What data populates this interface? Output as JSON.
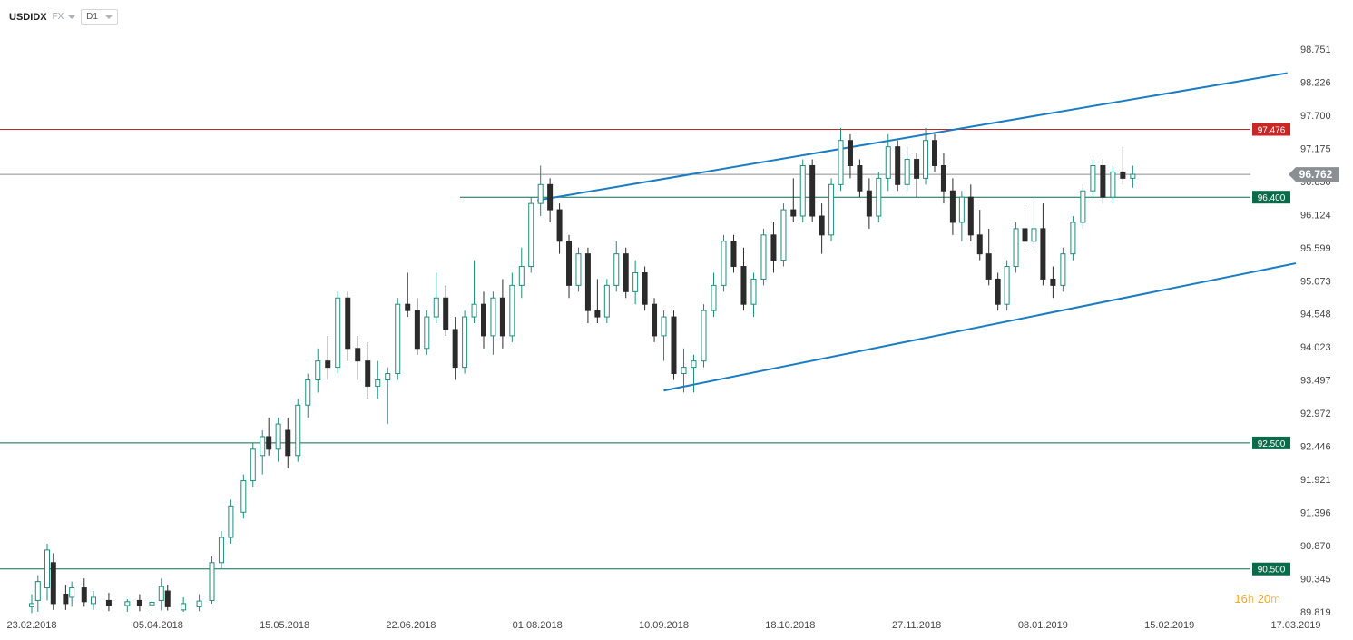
{
  "header": {
    "symbol": "USDIDX",
    "exchange": "FX",
    "timeframe": "D1"
  },
  "countdown": {
    "hours": "16",
    "hours_unit": "h",
    "minutes": "20",
    "minutes_unit": "m"
  },
  "colors": {
    "up": "#1e8e7e",
    "down": "#2b2b2b",
    "resistance": "#c62828",
    "support": "#0a6b4a",
    "trendline": "#1a7cc2",
    "current_price": "#8a8f94"
  },
  "chart_data": {
    "type": "candlestick",
    "y_ticks": [
      "98.751",
      "98.226",
      "97.700",
      "97.175",
      "96.650",
      "96.124",
      "95.599",
      "95.073",
      "94.548",
      "94.023",
      "93.497",
      "92.972",
      "92.446",
      "91.921",
      "91.396",
      "90.870",
      "90.345",
      "89.819"
    ],
    "ylim": [
      89.819,
      98.751
    ],
    "x_ticks": [
      "23.02.2018",
      "05.04.2018",
      "15.05.2018",
      "22.06.2018",
      "01.08.2018",
      "10.09.2018",
      "18.10.2018",
      "27.11.2018",
      "08.01.2019",
      "15.02.2019",
      "17.03.2019"
    ],
    "levels": [
      {
        "value": 97.476,
        "label": "97.476",
        "kind": "resistance"
      },
      {
        "value": 96.4,
        "label": "96.400",
        "kind": "support"
      },
      {
        "value": 92.5,
        "label": "92.500",
        "kind": "support"
      },
      {
        "value": 90.5,
        "label": "90.500",
        "kind": "support"
      }
    ],
    "current_price": {
      "value": 96.762,
      "label": "96.762"
    },
    "trendlines": [
      {
        "from": [
          "01.08.2018",
          96.35
        ],
        "to": [
          "15.03.2019",
          98.37
        ]
      },
      {
        "from": [
          "10.09.2018",
          93.33
        ],
        "to": [
          "17.03.2019",
          95.35
        ]
      }
    ],
    "candles": [
      {
        "date": "23.02.2018",
        "o": 89.9,
        "h": 90.1,
        "l": 89.8,
        "c": 89.95
      },
      {
        "date": "25.02.2018",
        "o": 90.0,
        "h": 90.4,
        "l": 89.82,
        "c": 90.3
      },
      {
        "date": "28.02.2018",
        "o": 90.2,
        "h": 90.9,
        "l": 90.0,
        "c": 90.8
      },
      {
        "date": "02.03.2018",
        "o": 90.6,
        "h": 90.75,
        "l": 89.85,
        "c": 89.95
      },
      {
        "date": "06.03.2018",
        "o": 90.1,
        "h": 90.25,
        "l": 89.85,
        "c": 89.95
      },
      {
        "date": "08.03.2018",
        "o": 90.05,
        "h": 90.3,
        "l": 89.9,
        "c": 90.2
      },
      {
        "date": "12.03.2018",
        "o": 90.2,
        "h": 90.35,
        "l": 89.9,
        "c": 89.98
      },
      {
        "date": "15.03.2018",
        "o": 89.95,
        "h": 90.15,
        "l": 89.85,
        "c": 90.05
      },
      {
        "date": "20.03.2018",
        "o": 90.0,
        "h": 90.12,
        "l": 89.83,
        "c": 89.92
      },
      {
        "date": "26.03.2018",
        "o": 89.92,
        "h": 90.02,
        "l": 89.82,
        "c": 89.98
      },
      {
        "date": "30.03.2018",
        "o": 90.0,
        "h": 90.1,
        "l": 89.83,
        "c": 89.92
      },
      {
        "date": "03.04.2018",
        "o": 89.93,
        "h": 90.0,
        "l": 89.82,
        "c": 89.97
      },
      {
        "date": "06.04.2018",
        "o": 90.0,
        "h": 90.35,
        "l": 89.84,
        "c": 90.22
      },
      {
        "date": "08.04.2018",
        "o": 90.15,
        "h": 90.25,
        "l": 89.84,
        "c": 89.9
      },
      {
        "date": "13.04.2018",
        "o": 89.85,
        "h": 90.05,
        "l": 89.82,
        "c": 89.95
      },
      {
        "date": "18.04.2018",
        "o": 89.9,
        "h": 90.1,
        "l": 89.83,
        "c": 89.99
      },
      {
        "date": "22.04.2018",
        "o": 90.0,
        "h": 90.7,
        "l": 89.95,
        "c": 90.6
      },
      {
        "date": "25.04.2018",
        "o": 90.6,
        "h": 91.1,
        "l": 90.5,
        "c": 91.0
      },
      {
        "date": "28.04.2018",
        "o": 91.0,
        "h": 91.6,
        "l": 90.9,
        "c": 91.5
      },
      {
        "date": "02.05.2018",
        "o": 91.4,
        "h": 92.0,
        "l": 91.3,
        "c": 91.9
      },
      {
        "date": "05.05.2018",
        "o": 91.9,
        "h": 92.5,
        "l": 91.8,
        "c": 92.4
      },
      {
        "date": "08.05.2018",
        "o": 92.3,
        "h": 92.7,
        "l": 92.0,
        "c": 92.6
      },
      {
        "date": "10.05.2018",
        "o": 92.6,
        "h": 92.9,
        "l": 92.3,
        "c": 92.4
      },
      {
        "date": "13.05.2018",
        "o": 92.4,
        "h": 92.9,
        "l": 92.2,
        "c": 92.8
      },
      {
        "date": "16.05.2018",
        "o": 92.7,
        "h": 92.9,
        "l": 92.1,
        "c": 92.3
      },
      {
        "date": "19.05.2018",
        "o": 92.3,
        "h": 93.2,
        "l": 92.2,
        "c": 93.1
      },
      {
        "date": "22.05.2018",
        "o": 93.1,
        "h": 93.6,
        "l": 92.9,
        "c": 93.5
      },
      {
        "date": "25.05.2018",
        "o": 93.5,
        "h": 94.0,
        "l": 93.3,
        "c": 93.8
      },
      {
        "date": "28.05.2018",
        "o": 93.8,
        "h": 94.2,
        "l": 93.5,
        "c": 93.7
      },
      {
        "date": "31.05.2018",
        "o": 93.7,
        "h": 94.9,
        "l": 93.6,
        "c": 94.8
      },
      {
        "date": "03.06.2018",
        "o": 94.8,
        "h": 94.9,
        "l": 93.8,
        "c": 94.0
      },
      {
        "date": "06.06.2018",
        "o": 94.0,
        "h": 94.2,
        "l": 93.5,
        "c": 93.8
      },
      {
        "date": "09.06.2018",
        "o": 93.8,
        "h": 94.1,
        "l": 93.2,
        "c": 93.4
      },
      {
        "date": "12.06.2018",
        "o": 93.4,
        "h": 93.8,
        "l": 93.2,
        "c": 93.5
      },
      {
        "date": "15.06.2018",
        "o": 93.5,
        "h": 93.7,
        "l": 92.8,
        "c": 93.6
      },
      {
        "date": "18.06.2018",
        "o": 93.6,
        "h": 94.8,
        "l": 93.5,
        "c": 94.7
      },
      {
        "date": "21.06.2018",
        "o": 94.7,
        "h": 95.2,
        "l": 94.5,
        "c": 94.6
      },
      {
        "date": "24.06.2018",
        "o": 94.6,
        "h": 94.8,
        "l": 93.9,
        "c": 94.0
      },
      {
        "date": "27.06.2018",
        "o": 94.0,
        "h": 94.6,
        "l": 93.9,
        "c": 94.5
      },
      {
        "date": "30.06.2018",
        "o": 94.5,
        "h": 95.2,
        "l": 94.4,
        "c": 94.8
      },
      {
        "date": "03.07.2018",
        "o": 94.8,
        "h": 95.0,
        "l": 94.2,
        "c": 94.3
      },
      {
        "date": "06.07.2018",
        "o": 94.3,
        "h": 94.5,
        "l": 93.5,
        "c": 93.7
      },
      {
        "date": "09.07.2018",
        "o": 93.7,
        "h": 94.6,
        "l": 93.6,
        "c": 94.5
      },
      {
        "date": "12.07.2018",
        "o": 94.5,
        "h": 95.4,
        "l": 94.4,
        "c": 94.7
      },
      {
        "date": "15.07.2018",
        "o": 94.7,
        "h": 94.9,
        "l": 94.0,
        "c": 94.2
      },
      {
        "date": "18.07.2018",
        "o": 94.2,
        "h": 94.9,
        "l": 93.9,
        "c": 94.8
      },
      {
        "date": "21.07.2018",
        "o": 94.8,
        "h": 95.1,
        "l": 94.0,
        "c": 94.2
      },
      {
        "date": "24.07.2018",
        "o": 94.2,
        "h": 95.2,
        "l": 94.1,
        "c": 95.0
      },
      {
        "date": "27.07.2018",
        "o": 95.0,
        "h": 95.6,
        "l": 94.8,
        "c": 95.3
      },
      {
        "date": "30.07.2018",
        "o": 95.3,
        "h": 96.4,
        "l": 95.2,
        "c": 96.3
      },
      {
        "date": "02.08.2018",
        "o": 96.3,
        "h": 96.9,
        "l": 96.1,
        "c": 96.6
      },
      {
        "date": "05.08.2018",
        "o": 96.6,
        "h": 96.7,
        "l": 96.0,
        "c": 96.2
      },
      {
        "date": "08.08.2018",
        "o": 96.2,
        "h": 96.3,
        "l": 95.5,
        "c": 95.7
      },
      {
        "date": "11.08.2018",
        "o": 95.7,
        "h": 95.8,
        "l": 94.8,
        "c": 95.0
      },
      {
        "date": "14.08.2018",
        "o": 95.0,
        "h": 95.6,
        "l": 94.9,
        "c": 95.5
      },
      {
        "date": "17.08.2018",
        "o": 95.5,
        "h": 95.6,
        "l": 94.4,
        "c": 94.6
      },
      {
        "date": "20.08.2018",
        "o": 94.6,
        "h": 95.1,
        "l": 94.4,
        "c": 94.5
      },
      {
        "date": "23.08.2018",
        "o": 94.5,
        "h": 95.1,
        "l": 94.4,
        "c": 95.0
      },
      {
        "date": "26.08.2018",
        "o": 95.0,
        "h": 95.7,
        "l": 94.9,
        "c": 95.5
      },
      {
        "date": "29.08.2018",
        "o": 95.5,
        "h": 95.6,
        "l": 94.8,
        "c": 94.9
      },
      {
        "date": "01.09.2018",
        "o": 94.9,
        "h": 95.4,
        "l": 94.7,
        "c": 95.2
      },
      {
        "date": "04.09.2018",
        "o": 95.2,
        "h": 95.3,
        "l": 94.6,
        "c": 94.7
      },
      {
        "date": "07.09.2018",
        "o": 94.7,
        "h": 94.8,
        "l": 94.1,
        "c": 94.2
      },
      {
        "date": "10.09.2018",
        "o": 94.2,
        "h": 94.6,
        "l": 93.8,
        "c": 94.5
      },
      {
        "date": "13.09.2018",
        "o": 94.5,
        "h": 94.6,
        "l": 93.5,
        "c": 93.6
      },
      {
        "date": "16.09.2018",
        "o": 93.6,
        "h": 94.0,
        "l": 93.3,
        "c": 93.7
      },
      {
        "date": "19.09.2018",
        "o": 93.7,
        "h": 93.9,
        "l": 93.3,
        "c": 93.8
      },
      {
        "date": "22.09.2018",
        "o": 93.8,
        "h": 94.7,
        "l": 93.7,
        "c": 94.6
      },
      {
        "date": "25.09.2018",
        "o": 94.6,
        "h": 95.2,
        "l": 94.5,
        "c": 95.0
      },
      {
        "date": "28.09.2018",
        "o": 95.0,
        "h": 95.8,
        "l": 94.9,
        "c": 95.7
      },
      {
        "date": "01.10.2018",
        "o": 95.7,
        "h": 95.8,
        "l": 95.2,
        "c": 95.3
      },
      {
        "date": "04.10.2018",
        "o": 95.3,
        "h": 95.6,
        "l": 94.6,
        "c": 94.7
      },
      {
        "date": "07.10.2018",
        "o": 94.7,
        "h": 95.2,
        "l": 94.5,
        "c": 95.1
      },
      {
        "date": "10.10.2018",
        "o": 95.1,
        "h": 95.9,
        "l": 95.0,
        "c": 95.8
      },
      {
        "date": "13.10.2018",
        "o": 95.8,
        "h": 96.0,
        "l": 95.2,
        "c": 95.4
      },
      {
        "date": "16.10.2018",
        "o": 95.4,
        "h": 96.3,
        "l": 95.3,
        "c": 96.2
      },
      {
        "date": "19.10.2018",
        "o": 96.2,
        "h": 96.7,
        "l": 96.0,
        "c": 96.1
      },
      {
        "date": "22.10.2018",
        "o": 96.1,
        "h": 97.0,
        "l": 96.0,
        "c": 96.9
      },
      {
        "date": "25.10.2018",
        "o": 96.9,
        "h": 97.0,
        "l": 96.0,
        "c": 96.1
      },
      {
        "date": "28.10.2018",
        "o": 96.1,
        "h": 96.3,
        "l": 95.5,
        "c": 95.8
      },
      {
        "date": "31.10.2018",
        "o": 95.8,
        "h": 96.7,
        "l": 95.7,
        "c": 96.6
      },
      {
        "date": "03.11.2018",
        "o": 96.6,
        "h": 97.5,
        "l": 96.5,
        "c": 97.3
      },
      {
        "date": "06.11.2018",
        "o": 97.3,
        "h": 97.4,
        "l": 96.7,
        "c": 96.9
      },
      {
        "date": "09.11.2018",
        "o": 96.9,
        "h": 97.0,
        "l": 96.4,
        "c": 96.5
      },
      {
        "date": "12.11.2018",
        "o": 96.5,
        "h": 96.7,
        "l": 95.9,
        "c": 96.1
      },
      {
        "date": "15.11.2018",
        "o": 96.1,
        "h": 96.8,
        "l": 96.0,
        "c": 96.7
      },
      {
        "date": "18.11.2018",
        "o": 96.7,
        "h": 97.4,
        "l": 96.5,
        "c": 97.2
      },
      {
        "date": "21.11.2018",
        "o": 97.2,
        "h": 97.3,
        "l": 96.5,
        "c": 96.6
      },
      {
        "date": "24.11.2018",
        "o": 96.6,
        "h": 97.2,
        "l": 96.5,
        "c": 97.0
      },
      {
        "date": "27.11.2018",
        "o": 97.0,
        "h": 97.1,
        "l": 96.4,
        "c": 96.7
      },
      {
        "date": "30.11.2018",
        "o": 96.7,
        "h": 97.5,
        "l": 96.6,
        "c": 97.3
      },
      {
        "date": "03.12.2018",
        "o": 97.3,
        "h": 97.4,
        "l": 96.8,
        "c": 96.9
      },
      {
        "date": "06.12.2018",
        "o": 96.9,
        "h": 97.1,
        "l": 96.3,
        "c": 96.5
      },
      {
        "date": "09.12.2018",
        "o": 96.5,
        "h": 96.7,
        "l": 95.8,
        "c": 96.0
      },
      {
        "date": "12.12.2018",
        "o": 96.0,
        "h": 96.5,
        "l": 95.7,
        "c": 96.4
      },
      {
        "date": "15.12.2018",
        "o": 96.4,
        "h": 96.6,
        "l": 95.7,
        "c": 95.8
      },
      {
        "date": "18.12.2018",
        "o": 95.8,
        "h": 96.2,
        "l": 95.4,
        "c": 95.5
      },
      {
        "date": "21.12.2018",
        "o": 95.5,
        "h": 95.9,
        "l": 95.0,
        "c": 95.1
      },
      {
        "date": "24.12.2018",
        "o": 95.1,
        "h": 95.2,
        "l": 94.6,
        "c": 94.7
      },
      {
        "date": "27.12.2018",
        "o": 94.7,
        "h": 95.4,
        "l": 94.6,
        "c": 95.3
      },
      {
        "date": "30.12.2018",
        "o": 95.3,
        "h": 96.0,
        "l": 95.2,
        "c": 95.9
      },
      {
        "date": "02.01.2019",
        "o": 95.9,
        "h": 96.2,
        "l": 95.6,
        "c": 95.7
      },
      {
        "date": "05.01.2019",
        "o": 95.7,
        "h": 96.4,
        "l": 95.6,
        "c": 95.9
      },
      {
        "date": "08.01.2019",
        "o": 95.9,
        "h": 96.3,
        "l": 95.0,
        "c": 95.1
      },
      {
        "date": "11.01.2019",
        "o": 95.1,
        "h": 95.3,
        "l": 94.8,
        "c": 95.0
      },
      {
        "date": "14.01.2019",
        "o": 95.0,
        "h": 95.6,
        "l": 94.9,
        "c": 95.5
      },
      {
        "date": "17.01.2019",
        "o": 95.5,
        "h": 96.1,
        "l": 95.4,
        "c": 96.0
      },
      {
        "date": "20.01.2019",
        "o": 96.0,
        "h": 96.6,
        "l": 95.9,
        "c": 96.5
      },
      {
        "date": "23.01.2019",
        "o": 96.5,
        "h": 97.0,
        "l": 96.4,
        "c": 96.9
      },
      {
        "date": "26.01.2019",
        "o": 96.9,
        "h": 97.0,
        "l": 96.3,
        "c": 96.4
      },
      {
        "date": "29.01.2019",
        "o": 96.4,
        "h": 96.9,
        "l": 96.3,
        "c": 96.8
      },
      {
        "date": "01.02.2019",
        "o": 96.8,
        "h": 97.2,
        "l": 96.6,
        "c": 96.7
      },
      {
        "date": "04.02.2019",
        "o": 96.7,
        "h": 96.9,
        "l": 96.55,
        "c": 96.762
      }
    ]
  }
}
